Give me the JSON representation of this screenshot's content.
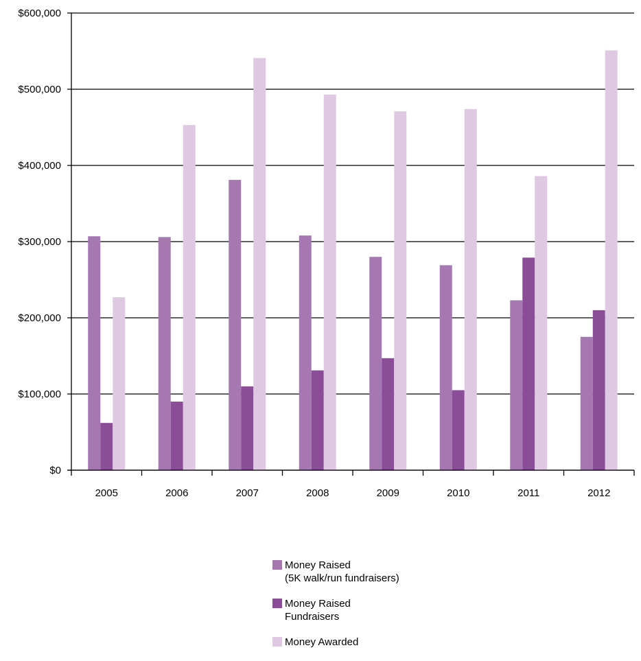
{
  "chart_data": {
    "type": "bar",
    "title": "",
    "xlabel": "",
    "ylabel": "",
    "categories": [
      "2005",
      "2006",
      "2007",
      "2008",
      "2009",
      "2010",
      "2011",
      "2012"
    ],
    "ylim": [
      0,
      600000
    ],
    "y_ticks": [
      "$0",
      "$100,000",
      "$200,000",
      "$300,000",
      "$400,000",
      "$500,000",
      "$600,000"
    ],
    "grid": true,
    "legend_position": "bottom-center",
    "series": [
      {
        "name_lines": [
          "Money Raised",
          "(5K walk/run fundraisers)"
        ],
        "color": "#a678b2",
        "values": [
          307000,
          306000,
          381000,
          308000,
          280000,
          269000,
          223000,
          175000
        ]
      },
      {
        "name_lines": [
          "Money Raised",
          "Fundraisers"
        ],
        "color": "#8c4d98",
        "values": [
          62000,
          90000,
          110000,
          131000,
          147000,
          105000,
          279000,
          210000
        ]
      },
      {
        "name_lines": [
          "Money Awarded"
        ],
        "color": "#dfc9e2",
        "values": [
          227000,
          453000,
          541000,
          493000,
          471000,
          474000,
          386000,
          551000
        ]
      }
    ]
  }
}
